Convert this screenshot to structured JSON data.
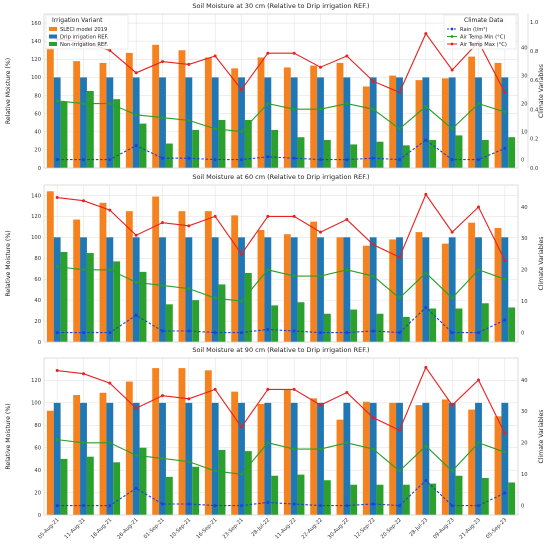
{
  "chart_data": [
    {
      "type": "bar",
      "title": "Soil Moisture at 30 cm (Relative to Drip irrigation REF.)",
      "ylabel": "Relative Moisture (%)",
      "y2label": "Climate Variables",
      "ylim": [
        0,
        170
      ],
      "yticks": [
        0,
        20,
        40,
        60,
        80,
        100,
        120,
        140,
        160
      ],
      "y2lim": [
        -3,
        52
      ],
      "y2ticks": [
        0,
        10,
        20,
        30,
        40
      ],
      "y3lim": [
        0,
        1.0
      ],
      "y3ticks": [
        0.0,
        0.2,
        0.4,
        0.6,
        0.8,
        1.0
      ],
      "legend_title": "Irrigation Variant",
      "legend_position": "top-left",
      "categories": [
        "05-Aug-21",
        "11-Aug-21",
        "18-Aug-21",
        "26-Aug-21",
        "01-Sep-21",
        "10-Sep-21",
        "16-Sep-21",
        "23-Sep-21",
        "28-Jul-22",
        "11-Aug-22",
        "22-Aug-22",
        "30-Aug-22",
        "12-Sep-22",
        "20-Sep-22",
        "28-Jul-23",
        "09-Aug-23",
        "21-Aug-23",
        "05-Sep-23"
      ],
      "series": [
        {
          "name": "SLECI model 2019",
          "color": "#f5821f",
          "values": [
            133,
            118,
            116,
            127,
            136,
            130,
            122,
            110,
            122,
            111,
            113,
            116,
            90,
            102,
            97,
            99,
            123,
            116
          ]
        },
        {
          "name": "Drip irrigation REF.",
          "color": "#1f77b4",
          "values": [
            100,
            100,
            100,
            100,
            100,
            100,
            100,
            100,
            100,
            100,
            100,
            100,
            100,
            100,
            100,
            100,
            100,
            100
          ]
        },
        {
          "name": "Non-irrigation REF.",
          "color": "#2ca02c",
          "values": [
            73,
            85,
            76,
            49,
            27,
            42,
            53,
            53,
            42,
            34,
            31,
            26,
            29,
            25,
            31,
            36,
            31,
            34
          ]
        }
      ],
      "climate_legend_title": "Climate Data",
      "climate_legend_position": "top-right",
      "climate_series": [
        {
          "name": "Rain (l/m²)",
          "color": "#1f3fd6",
          "values": [
            0,
            0,
            0,
            5,
            0.5,
            0.5,
            0,
            0,
            1,
            0.5,
            0,
            0,
            0.5,
            0,
            7,
            0,
            0,
            4
          ]
        },
        {
          "name": "Air Temp Min (°C)",
          "color": "#2a9d2a",
          "values": [
            21,
            20,
            20,
            16,
            15,
            14,
            11,
            10,
            20,
            18,
            18,
            20,
            18,
            11,
            19,
            11,
            20,
            17
          ]
        },
        {
          "name": "Air Temp Max (°C)",
          "color": "#e82020",
          "values": [
            43,
            42,
            39,
            31,
            35,
            34,
            37,
            25,
            38,
            38,
            33,
            37,
            28,
            24,
            45,
            32,
            42,
            24
          ]
        }
      ]
    },
    {
      "type": "bar",
      "title": "Soil Moisture at 60 cm (Relative to Drip irrigation REF.)",
      "ylabel": "Relative Moisture (%)",
      "y2label": "Climate Variables",
      "ylim": [
        0,
        150
      ],
      "yticks": [
        0,
        20,
        40,
        60,
        80,
        100,
        120,
        140
      ],
      "y2lim": [
        -3,
        47
      ],
      "y2ticks": [
        0,
        10,
        20,
        30,
        40
      ],
      "categories": [
        "05-Aug-21",
        "11-Aug-21",
        "18-Aug-21",
        "26-Aug-21",
        "01-Sep-21",
        "10-Sep-21",
        "16-Sep-21",
        "23-Sep-21",
        "28-Jul-22",
        "11-Aug-22",
        "22-Aug-22",
        "30-Aug-22",
        "12-Sep-22",
        "20-Sep-22",
        "28-Jul-23",
        "09-Aug-23",
        "21-Aug-23",
        "05-Sep-23"
      ],
      "series": [
        {
          "name": "SLECI model 2019",
          "color": "#f5821f",
          "values": [
            144,
            117,
            133,
            125,
            139,
            125,
            125,
            121,
            107,
            103,
            115,
            100,
            92,
            98,
            105,
            94,
            114,
            109
          ]
        },
        {
          "name": "Drip irrigation REF.",
          "color": "#1f77b4",
          "values": [
            100,
            100,
            100,
            100,
            100,
            100,
            100,
            100,
            100,
            100,
            100,
            100,
            100,
            100,
            100,
            100,
            100,
            100
          ]
        },
        {
          "name": "Non-irrigation REF.",
          "color": "#2ca02c",
          "values": [
            86,
            85,
            77,
            67,
            36,
            40,
            55,
            66,
            35,
            38,
            27,
            31,
            27,
            24,
            32,
            32,
            37,
            33
          ]
        }
      ],
      "climate_series": [
        {
          "name": "Rain (l/m²)",
          "color": "#1f3fd6",
          "values": [
            0,
            0,
            0,
            5.5,
            0.5,
            0.5,
            0,
            0,
            1,
            0.5,
            0,
            0,
            0.5,
            0,
            8,
            0,
            0,
            4
          ]
        },
        {
          "name": "Air Temp Min (°C)",
          "color": "#2a9d2a",
          "values": [
            21,
            20,
            20,
            16,
            15,
            14,
            11,
            10,
            20,
            18,
            18,
            20,
            18,
            11,
            19,
            11,
            20,
            17
          ]
        },
        {
          "name": "Air Temp Max (°C)",
          "color": "#e82020",
          "values": [
            43,
            42,
            39,
            31,
            35,
            34,
            37,
            25,
            37,
            37,
            32,
            36,
            28,
            24,
            44,
            32,
            40,
            23
          ]
        }
      ]
    },
    {
      "type": "bar",
      "title": "Soil Moisture at 90 cm (Relative to Drip irrigation REF.)",
      "ylabel": "Relative Moisture (%)",
      "y2label": "Climate Variables",
      "ylim": [
        0,
        140
      ],
      "yticks": [
        0,
        20,
        40,
        60,
        80,
        100,
        120
      ],
      "y2lim": [
        -3,
        47
      ],
      "y2ticks": [
        0,
        10,
        20,
        30,
        40
      ],
      "categories": [
        "05-Aug-21",
        "11-Aug-21",
        "18-Aug-21",
        "26-Aug-21",
        "01-Sep-21",
        "10-Sep-21",
        "16-Sep-21",
        "23-Sep-21",
        "28-Jul-22",
        "11-Aug-22",
        "22-Aug-22",
        "30-Aug-22",
        "12-Sep-22",
        "20-Sep-22",
        "28-Jul-23",
        "09-Aug-23",
        "21-Aug-23",
        "05-Sep-23"
      ],
      "series": [
        {
          "name": "SLECI model 2019",
          "color": "#f5821f",
          "values": [
            93,
            107,
            109,
            119,
            131,
            131,
            129,
            110,
            99,
            112,
            104,
            85,
            101,
            100,
            98,
            103,
            94,
            88
          ]
        },
        {
          "name": "Drip irrigation REF.",
          "color": "#1f77b4",
          "values": [
            100,
            100,
            100,
            100,
            100,
            100,
            100,
            100,
            100,
            100,
            100,
            100,
            100,
            100,
            100,
            100,
            100,
            100
          ]
        },
        {
          "name": "Non-irrigation REF.",
          "color": "#2ca02c",
          "values": [
            50,
            52,
            47,
            60,
            34,
            43,
            58,
            57,
            35,
            36,
            31,
            27,
            27,
            27,
            28,
            35,
            33,
            29
          ]
        }
      ],
      "climate_series": [
        {
          "name": "Rain (l/m²)",
          "color": "#1f3fd6",
          "values": [
            0,
            0,
            0,
            5.5,
            0.5,
            0.5,
            0,
            0,
            1,
            0.5,
            0,
            0,
            0.5,
            0,
            8,
            0,
            0,
            4
          ]
        },
        {
          "name": "Air Temp Min (°C)",
          "color": "#2a9d2a",
          "values": [
            21,
            20,
            20,
            16,
            15,
            14,
            11,
            10,
            20,
            18,
            18,
            20,
            18,
            11,
            19,
            11,
            20,
            17
          ]
        },
        {
          "name": "Air Temp Max (°C)",
          "color": "#e82020",
          "values": [
            43,
            42,
            39,
            31,
            35,
            34,
            37,
            25,
            37,
            37,
            32,
            36,
            28,
            24,
            44,
            32,
            40,
            23
          ]
        }
      ]
    }
  ]
}
